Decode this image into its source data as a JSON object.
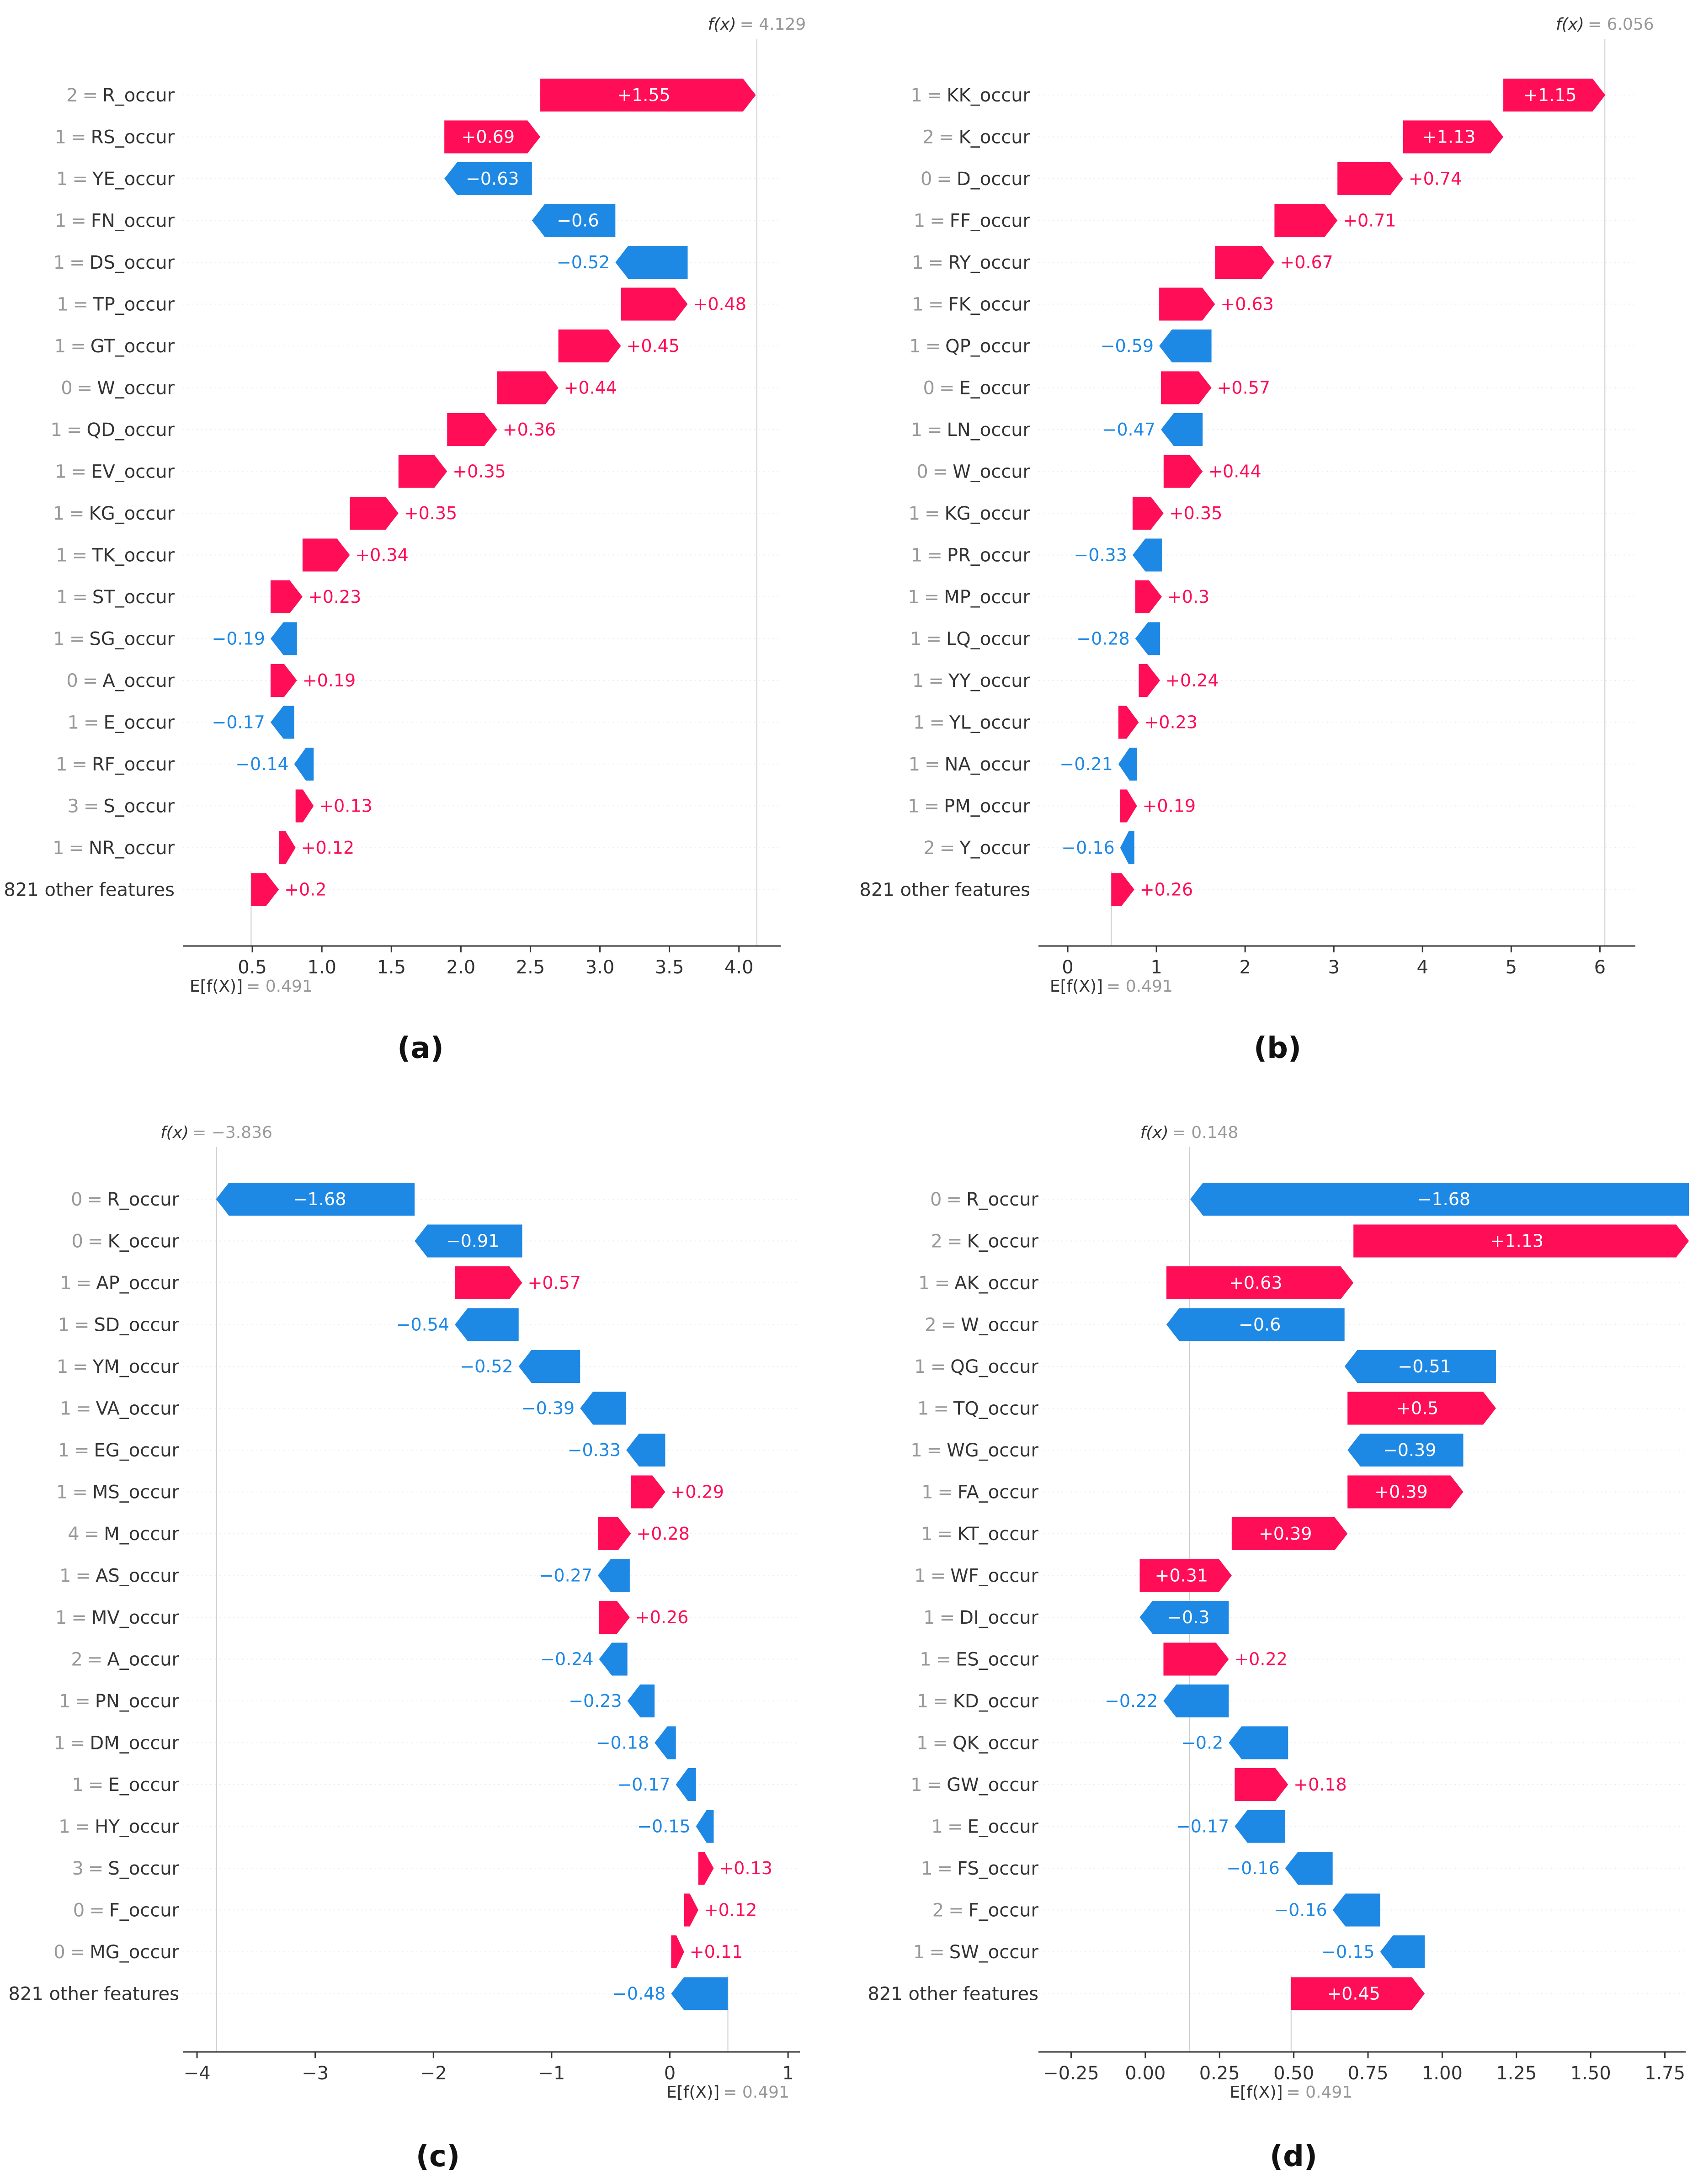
{
  "colors": {
    "positive": "#ff0d57",
    "negative": "#1e88e5",
    "axis": "#333333",
    "grid": "#dddddd",
    "muted": "#999999"
  },
  "chart_data": [
    {
      "type": "bar",
      "panel_label": "(a)",
      "fx_label": "f(x)",
      "fx_text": "= 4.129",
      "fx": 4.129,
      "efx_label": "E[f(X)]",
      "efx_text": "= 0.491",
      "efx": 0.491,
      "xlim": [
        0.0,
        4.3
      ],
      "ticks": [
        0.5,
        1.0,
        1.5,
        2.0,
        2.5,
        3.0,
        3.5,
        4.0
      ],
      "tick_labels": [
        "0.5",
        "1.0",
        "1.5",
        "2.0",
        "2.5",
        "3.0",
        "3.5",
        "4.0"
      ],
      "features": [
        {
          "value": "2",
          "name": "R_occur",
          "shap": 1.55,
          "label": "+1.55"
        },
        {
          "value": "1",
          "name": "RS_occur",
          "shap": 0.69,
          "label": "+0.69"
        },
        {
          "value": "1",
          "name": "YE_occur",
          "shap": -0.63,
          "label": "−0.63"
        },
        {
          "value": "1",
          "name": "FN_occur",
          "shap": -0.6,
          "label": "−0.6"
        },
        {
          "value": "1",
          "name": "DS_occur",
          "shap": -0.52,
          "label": "−0.52"
        },
        {
          "value": "1",
          "name": "TP_occur",
          "shap": 0.48,
          "label": "+0.48"
        },
        {
          "value": "1",
          "name": "GT_occur",
          "shap": 0.45,
          "label": "+0.45"
        },
        {
          "value": "0",
          "name": "W_occur",
          "shap": 0.44,
          "label": "+0.44"
        },
        {
          "value": "1",
          "name": "QD_occur",
          "shap": 0.36,
          "label": "+0.36"
        },
        {
          "value": "1",
          "name": "EV_occur",
          "shap": 0.35,
          "label": "+0.35"
        },
        {
          "value": "1",
          "name": "KG_occur",
          "shap": 0.35,
          "label": "+0.35"
        },
        {
          "value": "1",
          "name": "TK_occur",
          "shap": 0.34,
          "label": "+0.34"
        },
        {
          "value": "1",
          "name": "ST_occur",
          "shap": 0.23,
          "label": "+0.23"
        },
        {
          "value": "1",
          "name": "SG_occur",
          "shap": -0.19,
          "label": "−0.19"
        },
        {
          "value": "0",
          "name": "A_occur",
          "shap": 0.19,
          "label": "+0.19"
        },
        {
          "value": "1",
          "name": "E_occur",
          "shap": -0.17,
          "label": "−0.17"
        },
        {
          "value": "1",
          "name": "RF_occur",
          "shap": -0.14,
          "label": "−0.14"
        },
        {
          "value": "3",
          "name": "S_occur",
          "shap": 0.13,
          "label": "+0.13"
        },
        {
          "value": "1",
          "name": "NR_occur",
          "shap": 0.12,
          "label": "+0.12"
        },
        {
          "value": "",
          "name": "821 other features",
          "shap": 0.2,
          "label": "+0.2"
        }
      ]
    },
    {
      "type": "bar",
      "panel_label": "(b)",
      "fx_label": "f(x)",
      "fx_text": "= 6.056",
      "fx": 6.056,
      "efx_label": "E[f(X)]",
      "efx_text": "= 0.491",
      "efx": 0.491,
      "xlim": [
        -0.33,
        6.4
      ],
      "ticks": [
        0,
        1,
        2,
        3,
        4,
        5,
        6
      ],
      "tick_labels": [
        "0",
        "1",
        "2",
        "3",
        "4",
        "5",
        "6"
      ],
      "features": [
        {
          "value": "1",
          "name": "KK_occur",
          "shap": 1.15,
          "label": "+1.15"
        },
        {
          "value": "2",
          "name": "K_occur",
          "shap": 1.13,
          "label": "+1.13"
        },
        {
          "value": "0",
          "name": "D_occur",
          "shap": 0.74,
          "label": "+0.74"
        },
        {
          "value": "1",
          "name": "FF_occur",
          "shap": 0.71,
          "label": "+0.71"
        },
        {
          "value": "1",
          "name": "RY_occur",
          "shap": 0.67,
          "label": "+0.67"
        },
        {
          "value": "1",
          "name": "FK_occur",
          "shap": 0.63,
          "label": "+0.63"
        },
        {
          "value": "1",
          "name": "QP_occur",
          "shap": -0.59,
          "label": "−0.59"
        },
        {
          "value": "0",
          "name": "E_occur",
          "shap": 0.57,
          "label": "+0.57"
        },
        {
          "value": "1",
          "name": "LN_occur",
          "shap": -0.47,
          "label": "−0.47"
        },
        {
          "value": "0",
          "name": "W_occur",
          "shap": 0.44,
          "label": "+0.44"
        },
        {
          "value": "1",
          "name": "KG_occur",
          "shap": 0.35,
          "label": "+0.35"
        },
        {
          "value": "1",
          "name": "PR_occur",
          "shap": -0.33,
          "label": "−0.33"
        },
        {
          "value": "1",
          "name": "MP_occur",
          "shap": 0.3,
          "label": "+0.3"
        },
        {
          "value": "1",
          "name": "LQ_occur",
          "shap": -0.28,
          "label": "−0.28"
        },
        {
          "value": "1",
          "name": "YY_occur",
          "shap": 0.24,
          "label": "+0.24"
        },
        {
          "value": "1",
          "name": "YL_occur",
          "shap": 0.23,
          "label": "+0.23"
        },
        {
          "value": "1",
          "name": "NA_occur",
          "shap": -0.21,
          "label": "−0.21"
        },
        {
          "value": "1",
          "name": "PM_occur",
          "shap": 0.19,
          "label": "+0.19"
        },
        {
          "value": "2",
          "name": "Y_occur",
          "shap": -0.16,
          "label": "−0.16"
        },
        {
          "value": "",
          "name": "821 other features",
          "shap": 0.26,
          "label": "+0.26"
        }
      ]
    },
    {
      "type": "bar",
      "panel_label": "(c)",
      "fx_label": "f(x)",
      "fx_text": "= −3.836",
      "fx": -3.836,
      "efx_label": "E[f(X)]",
      "efx_text": "= 0.491",
      "efx": 0.491,
      "xlim": [
        -4.12,
        1.1
      ],
      "ticks": [
        -4,
        -3,
        -2,
        -1,
        0,
        1
      ],
      "tick_labels": [
        "−4",
        "−3",
        "−2",
        "−1",
        "0",
        "1"
      ],
      "features": [
        {
          "value": "0",
          "name": "R_occur",
          "shap": -1.68,
          "label": "−1.68"
        },
        {
          "value": "0",
          "name": "K_occur",
          "shap": -0.91,
          "label": "−0.91"
        },
        {
          "value": "1",
          "name": "AP_occur",
          "shap": 0.57,
          "label": "+0.57"
        },
        {
          "value": "1",
          "name": "SD_occur",
          "shap": -0.54,
          "label": "−0.54"
        },
        {
          "value": "1",
          "name": "YM_occur",
          "shap": -0.52,
          "label": "−0.52"
        },
        {
          "value": "1",
          "name": "VA_occur",
          "shap": -0.39,
          "label": "−0.39"
        },
        {
          "value": "1",
          "name": "EG_occur",
          "shap": -0.33,
          "label": "−0.33"
        },
        {
          "value": "1",
          "name": "MS_occur",
          "shap": 0.29,
          "label": "+0.29"
        },
        {
          "value": "4",
          "name": "M_occur",
          "shap": 0.28,
          "label": "+0.28"
        },
        {
          "value": "1",
          "name": "AS_occur",
          "shap": -0.27,
          "label": "−0.27"
        },
        {
          "value": "1",
          "name": "MV_occur",
          "shap": 0.26,
          "label": "+0.26"
        },
        {
          "value": "2",
          "name": "A_occur",
          "shap": -0.24,
          "label": "−0.24"
        },
        {
          "value": "1",
          "name": "PN_occur",
          "shap": -0.23,
          "label": "−0.23"
        },
        {
          "value": "1",
          "name": "DM_occur",
          "shap": -0.18,
          "label": "−0.18"
        },
        {
          "value": "1",
          "name": "E_occur",
          "shap": -0.17,
          "label": "−0.17"
        },
        {
          "value": "1",
          "name": "HY_occur",
          "shap": -0.15,
          "label": "−0.15"
        },
        {
          "value": "3",
          "name": "S_occur",
          "shap": 0.13,
          "label": "+0.13"
        },
        {
          "value": "0",
          "name": "F_occur",
          "shap": 0.12,
          "label": "+0.12"
        },
        {
          "value": "0",
          "name": "MG_occur",
          "shap": 0.11,
          "label": "+0.11"
        },
        {
          "value": "",
          "name": "821 other features",
          "shap": -0.48,
          "label": "−0.48"
        }
      ]
    },
    {
      "type": "bar",
      "panel_label": "(d)",
      "fx_label": "f(x)",
      "fx_text": "= 0.148",
      "fx": 0.148,
      "efx_label": "E[f(X)]",
      "efx_text": "= 0.491",
      "efx": 0.491,
      "xlim": [
        -0.36,
        1.82
      ],
      "ticks": [
        -0.25,
        0.0,
        0.25,
        0.5,
        0.75,
        1.0,
        1.25,
        1.5,
        1.75
      ],
      "tick_labels": [
        "−0.25",
        "0.00",
        "0.25",
        "0.50",
        "0.75",
        "1.00",
        "1.25",
        "1.50",
        "1.75"
      ],
      "features": [
        {
          "value": "0",
          "name": "R_occur",
          "shap": -1.68,
          "label": "−1.68"
        },
        {
          "value": "2",
          "name": "K_occur",
          "shap": 1.13,
          "label": "+1.13"
        },
        {
          "value": "1",
          "name": "AK_occur",
          "shap": 0.63,
          "label": "+0.63"
        },
        {
          "value": "2",
          "name": "W_occur",
          "shap": -0.6,
          "label": "−0.6"
        },
        {
          "value": "1",
          "name": "QG_occur",
          "shap": -0.51,
          "label": "−0.51"
        },
        {
          "value": "1",
          "name": "TQ_occur",
          "shap": 0.5,
          "label": "+0.5"
        },
        {
          "value": "1",
          "name": "WG_occur",
          "shap": -0.39,
          "label": "−0.39"
        },
        {
          "value": "1",
          "name": "FA_occur",
          "shap": 0.39,
          "label": "+0.39"
        },
        {
          "value": "1",
          "name": "KT_occur",
          "shap": 0.39,
          "label": "+0.39"
        },
        {
          "value": "1",
          "name": "WF_occur",
          "shap": 0.31,
          "label": "+0.31"
        },
        {
          "value": "1",
          "name": "DI_occur",
          "shap": -0.3,
          "label": "−0.3"
        },
        {
          "value": "1",
          "name": "ES_occur",
          "shap": 0.22,
          "label": "+0.22"
        },
        {
          "value": "1",
          "name": "KD_occur",
          "shap": -0.22,
          "label": "−0.22"
        },
        {
          "value": "1",
          "name": "QK_occur",
          "shap": -0.2,
          "label": "−0.2"
        },
        {
          "value": "1",
          "name": "GW_occur",
          "shap": 0.18,
          "label": "+0.18"
        },
        {
          "value": "1",
          "name": "E_occur",
          "shap": -0.17,
          "label": "−0.17"
        },
        {
          "value": "1",
          "name": "FS_occur",
          "shap": -0.16,
          "label": "−0.16"
        },
        {
          "value": "2",
          "name": "F_occur",
          "shap": -0.16,
          "label": "−0.16"
        },
        {
          "value": "1",
          "name": "SW_occur",
          "shap": -0.15,
          "label": "−0.15"
        },
        {
          "value": "",
          "name": "821 other features",
          "shap": 0.45,
          "label": "+0.45"
        }
      ]
    }
  ]
}
